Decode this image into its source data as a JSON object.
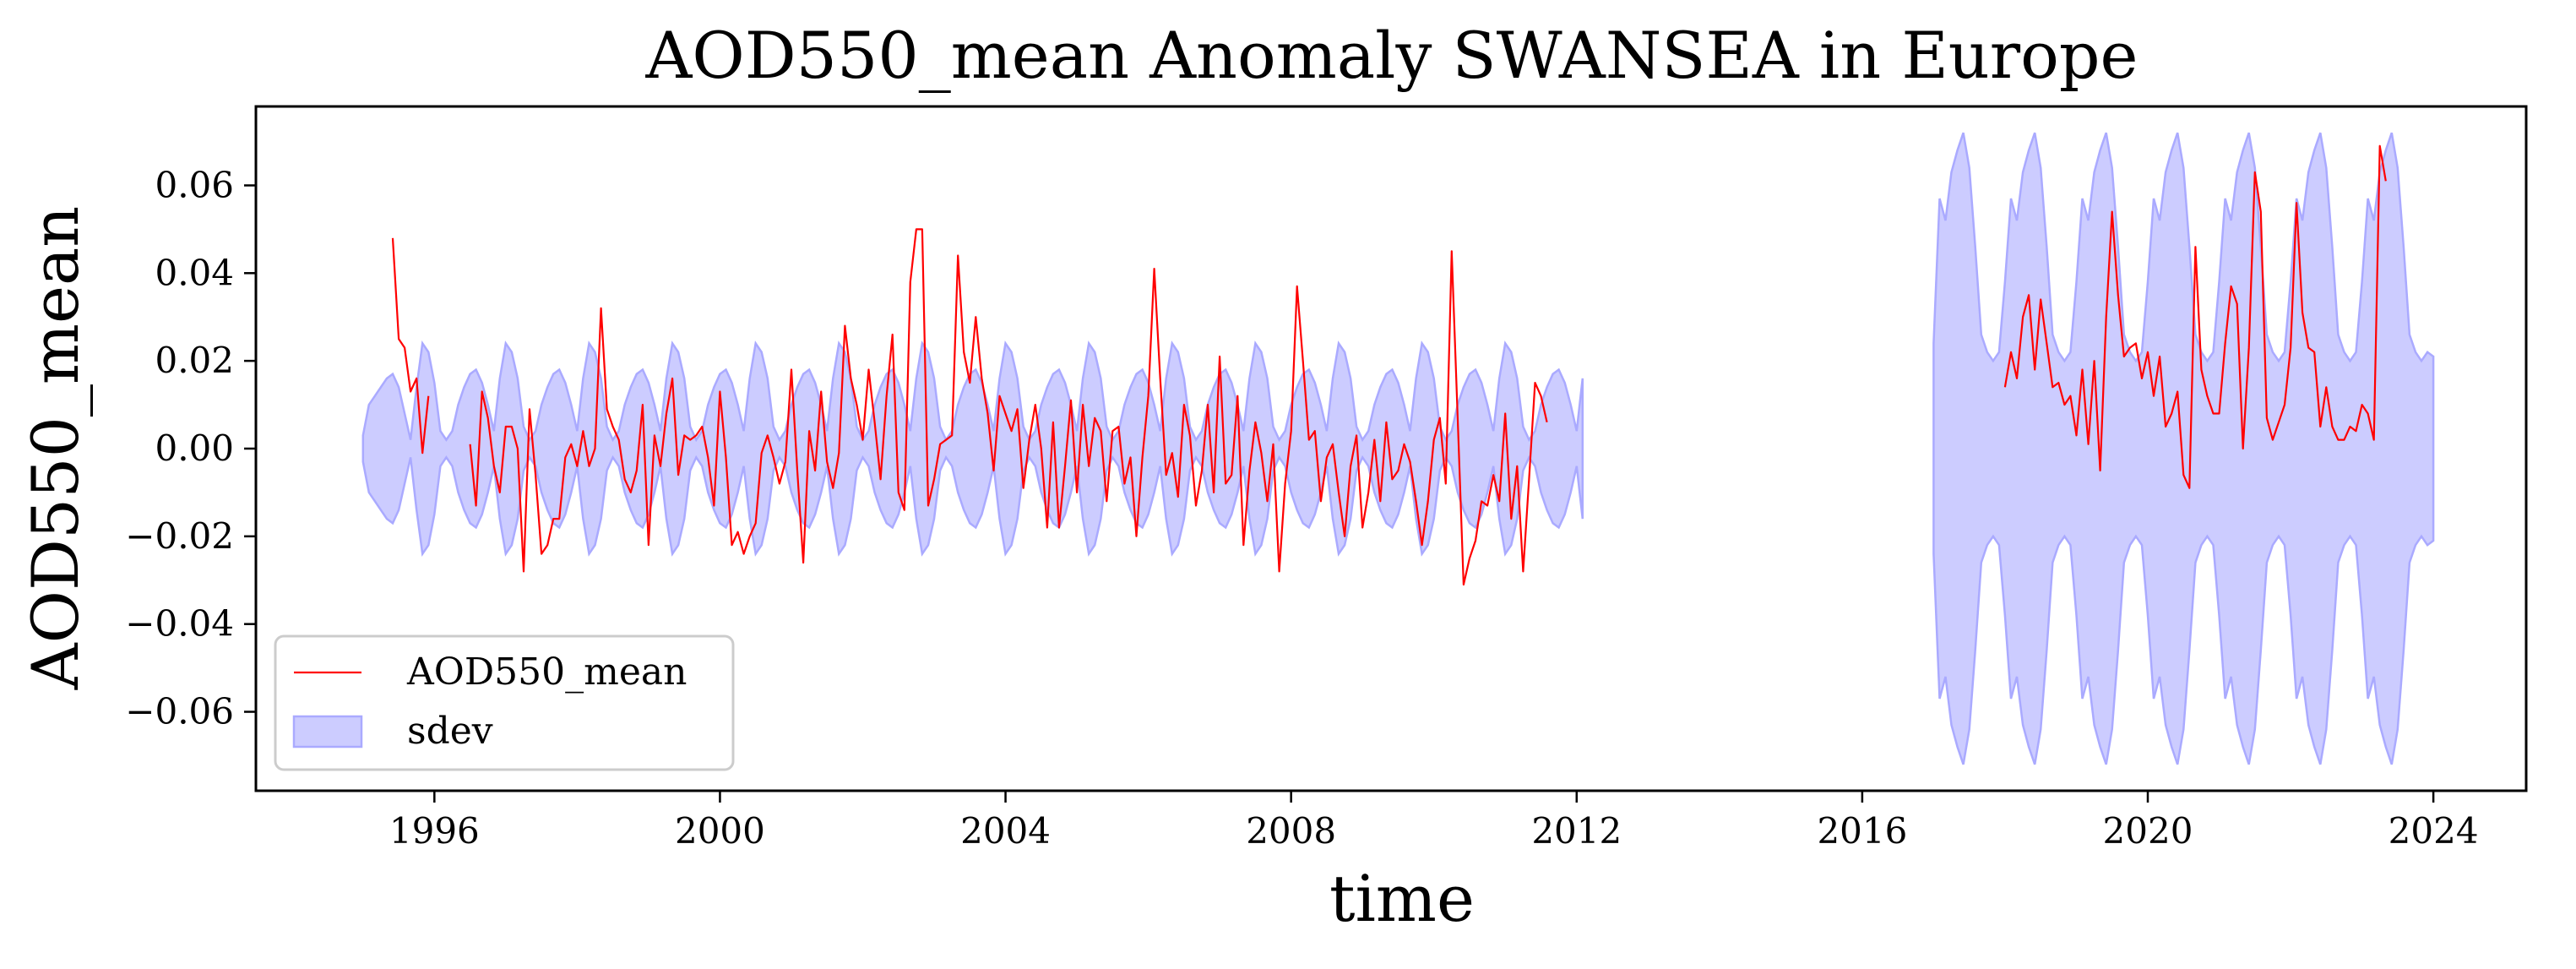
{
  "chart_data": {
    "type": "line",
    "title": "AOD550_mean Anomaly SWANSEA in Europe",
    "xlabel": "time",
    "ylabel": "AOD550_mean",
    "xlim": [
      1993.5,
      2025.3
    ],
    "ylim": [
      -0.078,
      0.078
    ],
    "x_ticks": [
      1996,
      2000,
      2004,
      2008,
      2012,
      2016,
      2020,
      2024
    ],
    "x_tick_labels": [
      "1996",
      "2000",
      "2004",
      "2008",
      "2012",
      "2016",
      "2020",
      "2024"
    ],
    "y_ticks": [
      0.06,
      0.04,
      0.02,
      0.0,
      -0.02,
      -0.04,
      -0.06
    ],
    "y_tick_labels": [
      "0.06",
      "0.04",
      "0.02",
      "0.00",
      "−0.02",
      "−0.04",
      "−0.06"
    ],
    "grid": false,
    "legend": {
      "position": "lower-left",
      "entries": [
        {
          "label": "AOD550_mean",
          "kind": "line",
          "color": "#ff0000"
        },
        {
          "label": "sdev",
          "kind": "patch",
          "color": "#0000ff"
        }
      ]
    },
    "colors": {
      "line": "#ff0000",
      "band_fill": "#ccccff",
      "band_edge": "#aaaaff"
    },
    "series": [
      {
        "name": "AOD550_mean",
        "role": "line",
        "segments": [
          {
            "start": "1995-06",
            "values": [
              0.048,
              0.025,
              0.023,
              0.013,
              0.016,
              -0.001,
              0.012
            ]
          },
          {
            "start": "1996-07",
            "values": [
              0.001,
              -0.013,
              0.013,
              0.007,
              -0.004,
              -0.01,
              0.005,
              0.005,
              0.0,
              -0.028,
              0.009,
              -0.006,
              -0.024,
              -0.022,
              -0.016,
              -0.016,
              -0.002,
              0.001,
              -0.004,
              0.004,
              -0.004,
              0.0,
              0.032,
              0.009,
              0.005,
              0.002,
              -0.007,
              -0.01,
              -0.005,
              0.01,
              -0.022,
              0.003,
              -0.004,
              0.008,
              0.016,
              -0.006,
              0.003,
              0.002,
              0.003,
              0.005,
              -0.002,
              -0.013,
              0.013,
              -0.002,
              -0.022,
              -0.019,
              -0.024,
              -0.02,
              -0.017,
              -0.001,
              0.003,
              -0.002,
              -0.008,
              -0.003,
              0.018,
              -0.005,
              -0.026,
              0.004,
              -0.005,
              0.013,
              -0.003,
              -0.009,
              -0.001,
              0.028,
              0.016,
              0.01,
              0.002,
              0.018,
              0.006,
              -0.007,
              0.012,
              0.026,
              -0.01,
              -0.014,
              0.038,
              0.05,
              0.05,
              -0.013,
              -0.007,
              0.001,
              0.002,
              0.003,
              0.044,
              0.022,
              0.015,
              0.03,
              0.016,
              0.008,
              -0.005,
              0.012,
              0.008,
              0.004,
              0.009,
              -0.009,
              0.002,
              0.01,
              0.0,
              -0.018,
              0.006,
              -0.018,
              -0.004,
              0.011,
              -0.01,
              0.01,
              -0.004,
              0.007,
              0.004,
              -0.012,
              0.004,
              0.005,
              -0.008,
              -0.002,
              -0.02,
              -0.002,
              0.012,
              0.041,
              0.016,
              -0.006,
              -0.001,
              -0.011,
              0.01,
              0.003,
              -0.013,
              -0.005,
              0.01,
              -0.01,
              0.021,
              -0.008,
              -0.006,
              0.012,
              -0.022,
              -0.005,
              0.006,
              -0.001,
              -0.012,
              0.001,
              -0.028,
              -0.008,
              0.004,
              0.037,
              0.02,
              0.002,
              0.004,
              -0.012,
              -0.002,
              0.001,
              -0.01,
              -0.02,
              -0.004,
              0.003,
              -0.018,
              -0.01,
              0.002,
              -0.012,
              0.006,
              -0.007,
              -0.005,
              0.001,
              -0.003,
              -0.012,
              -0.022,
              -0.012,
              0.002,
              0.007,
              -0.008,
              0.045,
              0.007,
              -0.031,
              -0.025,
              -0.021,
              -0.012,
              -0.013,
              -0.006,
              -0.012,
              0.008,
              -0.016,
              -0.004,
              -0.028,
              -0.007,
              0.015,
              0.012,
              0.006
            ]
          },
          {
            "start": "2018-01",
            "values": [
              0.014,
              0.022,
              0.016,
              0.03,
              0.035,
              0.018,
              0.034,
              0.024,
              0.014,
              0.015,
              0.01,
              0.012,
              0.003,
              0.018,
              0.001,
              0.02,
              -0.005,
              0.03,
              0.054,
              0.035,
              0.021,
              0.023,
              0.024,
              0.016,
              0.022,
              0.012,
              0.021,
              0.005,
              0.008,
              0.013,
              -0.006,
              -0.009,
              0.046,
              0.018,
              0.012,
              0.008,
              0.008,
              0.024,
              0.037,
              0.033,
              0.0,
              0.023,
              0.063,
              0.054,
              0.007,
              0.002,
              0.006,
              0.01,
              0.023,
              0.056,
              0.031,
              0.023,
              0.022,
              0.005,
              0.014,
              0.005,
              0.002,
              0.002,
              0.005,
              0.004,
              0.01,
              0.008,
              0.002,
              0.069,
              0.061
            ]
          }
        ]
      },
      {
        "name": "sdev",
        "role": "band",
        "note_symmetric": true,
        "segments": [
          {
            "start": "1995-01",
            "values": [
              0.003,
              0.01,
              0.012,
              0.014,
              0.016,
              0.017,
              0.014,
              0.008,
              0.002,
              0.014,
              0.024,
              0.022,
              0.015,
              0.004,
              0.002,
              0.004,
              0.01,
              0.014,
              0.017,
              0.018,
              0.015,
              0.01,
              0.004,
              0.016,
              0.024,
              0.022,
              0.016,
              0.005,
              0.002,
              0.004,
              0.01,
              0.014,
              0.017,
              0.018,
              0.015,
              0.01,
              0.004,
              0.016,
              0.024,
              0.022,
              0.016,
              0.005,
              0.002,
              0.004,
              0.01,
              0.014,
              0.017,
              0.018,
              0.015,
              0.01,
              0.004,
              0.016,
              0.024,
              0.022,
              0.016,
              0.005,
              0.002,
              0.004,
              0.01,
              0.014,
              0.017,
              0.018,
              0.015,
              0.01,
              0.004,
              0.016,
              0.024,
              0.022,
              0.016,
              0.005,
              0.002,
              0.004,
              0.01,
              0.014,
              0.017,
              0.018,
              0.015,
              0.01,
              0.004,
              0.016,
              0.024,
              0.022,
              0.016,
              0.005,
              0.002,
              0.004,
              0.01,
              0.014,
              0.017,
              0.018,
              0.015,
              0.01,
              0.004,
              0.016,
              0.024,
              0.022,
              0.016,
              0.005,
              0.002,
              0.004,
              0.01,
              0.014,
              0.017,
              0.018,
              0.015,
              0.01,
              0.004,
              0.016,
              0.024,
              0.022,
              0.016,
              0.005,
              0.002,
              0.004,
              0.01,
              0.014,
              0.017,
              0.018,
              0.015,
              0.01,
              0.004,
              0.016,
              0.024,
              0.022,
              0.016,
              0.005,
              0.002,
              0.004,
              0.01,
              0.014,
              0.017,
              0.018,
              0.015,
              0.01,
              0.004,
              0.016,
              0.024,
              0.022,
              0.016,
              0.005,
              0.002,
              0.004,
              0.01,
              0.014,
              0.017,
              0.018,
              0.015,
              0.01,
              0.004,
              0.016,
              0.024,
              0.022,
              0.016,
              0.005,
              0.002,
              0.004,
              0.01,
              0.014,
              0.017,
              0.018,
              0.015,
              0.01,
              0.004,
              0.016,
              0.024,
              0.022,
              0.016,
              0.005,
              0.002,
              0.004,
              0.01,
              0.014,
              0.017,
              0.018,
              0.015,
              0.01,
              0.004,
              0.016,
              0.024,
              0.022,
              0.016,
              0.005,
              0.002,
              0.004,
              0.01,
              0.014,
              0.017,
              0.018,
              0.015,
              0.01,
              0.004,
              0.016,
              0.024,
              0.022,
              0.016,
              0.005,
              0.002,
              0.004,
              0.01,
              0.014,
              0.017,
              0.018,
              0.015,
              0.01,
              0.004,
              0.016
            ]
          },
          {
            "start": "2017-01",
            "values": [
              0.024,
              0.057,
              0.052,
              0.063,
              0.068,
              0.072,
              0.064,
              0.046,
              0.026,
              0.022,
              0.02,
              0.022,
              0.038,
              0.057,
              0.052,
              0.063,
              0.068,
              0.072,
              0.064,
              0.046,
              0.026,
              0.022,
              0.02,
              0.022,
              0.038,
              0.057,
              0.052,
              0.063,
              0.068,
              0.072,
              0.064,
              0.046,
              0.026,
              0.022,
              0.02,
              0.022,
              0.038,
              0.057,
              0.052,
              0.063,
              0.068,
              0.072,
              0.064,
              0.046,
              0.026,
              0.022,
              0.02,
              0.022,
              0.038,
              0.057,
              0.052,
              0.063,
              0.068,
              0.072,
              0.064,
              0.046,
              0.026,
              0.022,
              0.02,
              0.022,
              0.038,
              0.057,
              0.052,
              0.063,
              0.068,
              0.072,
              0.064,
              0.046,
              0.026,
              0.022,
              0.02,
              0.022,
              0.038,
              0.057,
              0.052,
              0.063,
              0.068,
              0.072,
              0.064,
              0.046,
              0.026,
              0.022,
              0.02,
              0.022,
              0.021
            ]
          }
        ]
      }
    ]
  }
}
